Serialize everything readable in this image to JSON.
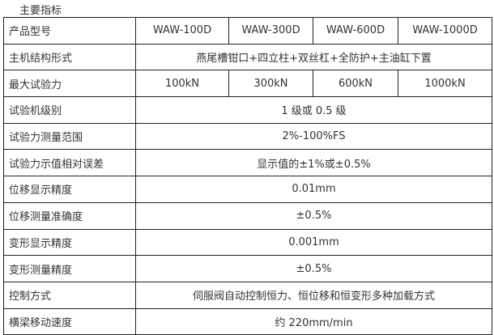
{
  "title": "主要指标",
  "header": {
    "label": "产品型号",
    "models": [
      "WAW-100D",
      "WAW-300D",
      "WAW-600D",
      "WAW-1000D"
    ]
  },
  "structure": {
    "label": "主机结构形式",
    "value": "燕尾槽钳口+四立柱+双丝杠+全防护+主油缸下置"
  },
  "max_force": {
    "label": "最大试验力",
    "values": [
      "100kN",
      "300kN",
      "600kN",
      "1000kN"
    ]
  },
  "rows": [
    {
      "label": "试验机级别",
      "value": "1 级或 0.5 级"
    },
    {
      "label": "试验力测量范围",
      "value": "2%-100%FS"
    },
    {
      "label": "试验力示值相对误差",
      "value": "显示值的±1%或±0.5%"
    },
    {
      "label": "位移显示精度",
      "value": "0.01mm"
    },
    {
      "label": "位移测量准确度",
      "value": "±0.5%"
    },
    {
      "label": "变形显示精度",
      "value": "0.001mm"
    },
    {
      "label": "变形测量精度",
      "value": "±0.5%"
    },
    {
      "label": "控制方式",
      "value": "伺服阀自动控制恒力、恒位移和恒变形多种加载方式"
    },
    {
      "label": "横梁移动速度",
      "value": "约 220mm/min"
    }
  ]
}
